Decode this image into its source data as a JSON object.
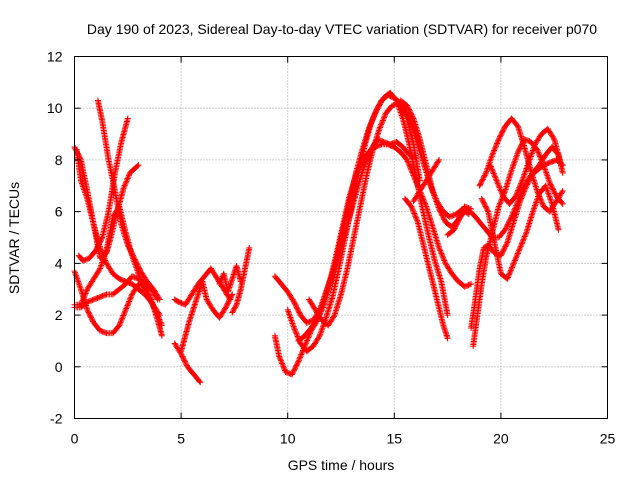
{
  "chart_data": {
    "type": "scatter",
    "title": "Day 190 of 2023, Sidereal Day-to-day VTEC variation (SDTVAR) for receiver p070",
    "xlabel": "GPS time / hours",
    "ylabel": "SDTVAR / TECUs",
    "xlim": [
      0,
      25
    ],
    "ylim": [
      -2,
      12
    ],
    "xticks": [
      0,
      5,
      10,
      15,
      20,
      25
    ],
    "yticks": [
      -2,
      0,
      2,
      4,
      6,
      8,
      10,
      12
    ],
    "xtick_labels": [
      "0",
      "5",
      "10",
      "15",
      "20",
      "25"
    ],
    "ytick_labels": [
      "-2",
      "0",
      "2",
      "4",
      "6",
      "8",
      "10",
      "12"
    ],
    "grid": true,
    "marker": "+",
    "marker_color": "#ff0000",
    "series": [
      {
        "name": "s1",
        "x": [
          0.0,
          0.3,
          0.6,
          0.9,
          1.2,
          1.5,
          1.8,
          2.1,
          2.4,
          2.7,
          3.0,
          3.3,
          3.6,
          3.9,
          4.1
        ],
        "y": [
          8.5,
          8.0,
          6.8,
          5.5,
          4.6,
          4.0,
          3.6,
          3.4,
          3.3,
          3.2,
          3.0,
          2.8,
          2.5,
          2.0,
          1.6
        ]
      },
      {
        "name": "s2",
        "x": [
          0.0,
          0.3,
          0.6,
          0.9,
          1.2,
          1.5,
          1.8,
          2.1,
          2.4,
          2.7,
          3.0,
          3.3,
          3.6,
          3.9
        ],
        "y": [
          2.3,
          2.3,
          2.5,
          2.6,
          2.7,
          2.8,
          2.8,
          3.0,
          3.2,
          3.5,
          3.4,
          3.2,
          3.0,
          2.6
        ]
      },
      {
        "name": "s3",
        "x": [
          0.0,
          0.3,
          0.6,
          0.9,
          1.2,
          1.5,
          1.8,
          2.1,
          2.4,
          2.7,
          3.0,
          3.3,
          3.6,
          3.9,
          4.1
        ],
        "y": [
          3.7,
          3.0,
          2.2,
          1.7,
          1.4,
          1.3,
          1.3,
          1.6,
          2.2,
          2.8,
          3.2,
          3.1,
          2.6,
          1.8,
          1.2
        ]
      },
      {
        "name": "s4",
        "x": [
          0.1,
          0.3,
          0.6,
          0.9,
          1.2,
          1.5,
          1.7,
          2.0,
          2.3,
          2.6,
          3.0
        ],
        "y": [
          8.4,
          7.2,
          6.5,
          5.5,
          4.2,
          4.4,
          5.0,
          6.0,
          6.9,
          7.5,
          7.8
        ]
      },
      {
        "name": "s5",
        "x": [
          0.2,
          0.4,
          0.7,
          1.0,
          1.3,
          1.6,
          1.9,
          2.2,
          2.5
        ],
        "y": [
          4.3,
          4.1,
          4.2,
          4.5,
          5.0,
          6.0,
          7.5,
          8.7,
          9.6
        ]
      },
      {
        "name": "s6",
        "x": [
          1.1,
          1.3,
          1.6,
          1.9,
          2.2,
          2.5,
          2.8,
          3.1,
          3.4,
          3.7,
          4.0
        ],
        "y": [
          10.3,
          9.5,
          8.0,
          6.8,
          5.5,
          4.7,
          4.2,
          3.7,
          3.3,
          3.0,
          2.6
        ]
      },
      {
        "name": "s7",
        "x": [
          0.0,
          0.3,
          0.6,
          0.9,
          1.2,
          1.5,
          1.8,
          2.1,
          2.4,
          2.7,
          3.0,
          3.3,
          3.6,
          4.0
        ],
        "y": [
          2.4,
          2.4,
          3.0,
          3.4,
          3.8,
          4.5,
          5.8,
          6.2,
          5.2,
          4.3,
          3.6,
          3.0,
          2.5,
          2.0
        ]
      },
      {
        "name": "s8",
        "x": [
          4.7,
          5.0,
          5.3,
          5.6,
          5.9
        ],
        "y": [
          0.9,
          0.5,
          0.0,
          -0.3,
          -0.6
        ]
      },
      {
        "name": "s9",
        "x": [
          4.7,
          4.9,
          5.2,
          5.5,
          5.8,
          6.1,
          6.4,
          6.7,
          7.0,
          7.3
        ],
        "y": [
          2.6,
          2.5,
          2.4,
          2.8,
          3.2,
          3.5,
          3.8,
          3.4,
          3.0,
          2.6
        ]
      },
      {
        "name": "s10",
        "x": [
          5.0,
          5.2,
          5.4,
          5.6,
          5.8,
          6.0,
          6.2,
          6.5,
          6.8,
          7.1,
          7.4
        ],
        "y": [
          0.6,
          1.2,
          1.8,
          2.3,
          2.8,
          3.3,
          2.6,
          2.2,
          1.9,
          2.3,
          2.8
        ]
      },
      {
        "name": "s11",
        "x": [
          7.4,
          7.6,
          7.8,
          8.0,
          8.2
        ],
        "y": [
          2.1,
          2.4,
          3.0,
          3.8,
          4.6
        ]
      },
      {
        "name": "s12",
        "x": [
          6.8,
          7.0,
          7.2,
          7.4,
          7.6,
          7.8
        ],
        "y": [
          3.2,
          3.6,
          2.9,
          3.4,
          3.9,
          3.3
        ]
      },
      {
        "name": "s13",
        "x": [
          9.4,
          9.6,
          9.9,
          10.2,
          10.5,
          10.8,
          11.1,
          11.4,
          11.7,
          12.0,
          12.3,
          12.6,
          12.9,
          13.2,
          13.5,
          13.8,
          14.1,
          14.4,
          14.7,
          15.0,
          15.3,
          15.6,
          15.9,
          16.2
        ],
        "y": [
          1.2,
          0.4,
          -0.2,
          -0.3,
          0.2,
          0.8,
          1.4,
          1.8,
          2.4,
          3.2,
          4.2,
          5.3,
          6.4,
          7.5,
          8.4,
          9.2,
          9.8,
          10.3,
          10.5,
          10.4,
          10.2,
          9.6,
          8.6,
          7.2
        ]
      },
      {
        "name": "s14",
        "x": [
          9.4,
          9.7,
          10.0,
          10.3,
          10.6,
          10.9,
          11.2,
          11.5,
          11.8,
          12.1,
          12.4,
          12.7,
          13.0,
          13.3,
          13.6,
          13.9,
          14.2,
          14.5,
          14.8,
          15.1,
          15.4,
          15.7,
          16.0
        ],
        "y": [
          3.5,
          3.2,
          2.9,
          2.5,
          2.0,
          1.7,
          1.8,
          2.2,
          2.9,
          3.6,
          4.4,
          5.2,
          6.1,
          7.0,
          7.8,
          8.4,
          8.8,
          8.7,
          8.6,
          8.7,
          8.5,
          8.2,
          8.1
        ]
      },
      {
        "name": "s15",
        "x": [
          10.0,
          10.3,
          10.6,
          10.9,
          11.2,
          11.5,
          11.8,
          12.1,
          12.4,
          12.7,
          13.0,
          13.3,
          13.6,
          13.9,
          14.2,
          14.5,
          14.8,
          15.1,
          15.4,
          15.7,
          16.0,
          16.3,
          16.6,
          16.9,
          17.2,
          17.5
        ],
        "y": [
          2.2,
          1.5,
          0.9,
          0.6,
          0.8,
          1.2,
          1.9,
          2.7,
          3.8,
          5.0,
          6.2,
          7.4,
          8.5,
          9.4,
          10.0,
          10.4,
          10.6,
          10.3,
          9.6,
          8.6,
          7.4,
          6.2,
          5.1,
          4.1,
          3.3,
          2.0
        ]
      },
      {
        "name": "s16",
        "x": [
          10.5,
          10.8,
          11.1,
          11.4,
          11.7,
          12.0,
          12.3,
          12.6,
          12.9,
          13.2,
          13.5,
          13.8,
          14.1,
          14.4,
          14.7,
          15.0,
          15.3,
          15.6,
          15.9,
          16.2,
          16.5,
          16.8,
          17.1,
          17.4,
          17.7,
          18.0,
          18.3,
          18.6
        ],
        "y": [
          1.0,
          1.2,
          1.5,
          1.9,
          2.6,
          3.4,
          4.4,
          5.5,
          6.6,
          7.4,
          8.0,
          8.3,
          8.5,
          8.6,
          8.6,
          8.5,
          8.3,
          8.0,
          7.4,
          6.8,
          6.2,
          5.4,
          4.6,
          4.0,
          3.6,
          3.3,
          3.1,
          3.2
        ]
      },
      {
        "name": "s17",
        "x": [
          11.0,
          11.3,
          11.6,
          11.9,
          12.2,
          12.5,
          12.8,
          13.1,
          13.4,
          13.7,
          14.0,
          14.3,
          14.6,
          14.9,
          15.2,
          15.5,
          15.8,
          16.1,
          16.4,
          16.7,
          17.0,
          17.3,
          17.6,
          17.9,
          18.2,
          18.5
        ],
        "y": [
          2.6,
          2.2,
          1.8,
          1.6,
          2.0,
          2.8,
          3.8,
          5.0,
          6.2,
          7.4,
          8.4,
          9.2,
          9.8,
          10.1,
          10.2,
          10.0,
          9.4,
          8.6,
          7.8,
          7.0,
          6.4,
          6.0,
          5.8,
          5.9,
          6.1,
          5.9
        ]
      },
      {
        "name": "s18",
        "x": [
          15.3,
          15.6,
          15.9,
          16.2,
          16.5,
          16.8,
          17.1,
          17.4,
          17.7,
          18.0,
          18.3,
          18.6
        ],
        "y": [
          10.3,
          10.1,
          9.6,
          8.8,
          7.8,
          6.8,
          6.1,
          5.6,
          5.4,
          5.7,
          6.2,
          6.1
        ]
      },
      {
        "name": "s19",
        "x": [
          15.9,
          16.2,
          16.5,
          16.8,
          17.1
        ],
        "y": [
          6.4,
          6.8,
          7.2,
          7.6,
          8.0
        ]
      },
      {
        "name": "s20",
        "x": [
          15.5,
          15.8,
          16.1,
          16.4,
          16.7,
          17.0,
          17.3,
          17.5
        ],
        "y": [
          6.5,
          6.2,
          5.6,
          4.6,
          3.6,
          2.6,
          1.6,
          1.1
        ]
      },
      {
        "name": "s21",
        "x": [
          17.5,
          17.8,
          18.1,
          18.4,
          18.7,
          19.0,
          19.3,
          19.6,
          19.9,
          20.2,
          20.5,
          20.8,
          21.1,
          21.4,
          21.7,
          22.0,
          22.3,
          22.6,
          22.9
        ],
        "y": [
          5.1,
          5.3,
          5.8,
          6.1,
          5.9,
          5.6,
          5.3,
          5.0,
          5.0,
          5.3,
          5.8,
          6.4,
          7.0,
          7.4,
          7.6,
          7.8,
          7.9,
          8.0,
          7.8
        ]
      },
      {
        "name": "s22",
        "x": [
          18.6,
          18.8,
          19.0,
          19.2,
          19.4,
          19.7,
          20.0,
          20.3,
          20.6,
          20.9,
          21.2,
          21.5,
          21.8,
          22.1,
          22.4,
          22.7,
          22.9
        ],
        "y": [
          1.5,
          2.6,
          3.8,
          4.6,
          4.7,
          4.4,
          4.3,
          4.8,
          5.6,
          6.4,
          7.0,
          7.5,
          7.8,
          8.2,
          8.5,
          8.2,
          7.5
        ]
      },
      {
        "name": "s23",
        "x": [
          18.7,
          18.9,
          19.1,
          19.3,
          19.6,
          19.9,
          20.2,
          20.5,
          20.8,
          21.1,
          21.4,
          21.7,
          22.0,
          22.3,
          22.6,
          22.9
        ],
        "y": [
          0.8,
          2.0,
          3.2,
          4.2,
          5.2,
          6.2,
          6.8,
          7.6,
          8.3,
          8.8,
          8.7,
          8.4,
          7.8,
          7.1,
          6.6,
          6.3
        ]
      },
      {
        "name": "s24",
        "x": [
          19.0,
          19.3,
          19.6,
          19.9,
          20.2,
          20.5,
          20.8,
          21.1,
          21.4,
          21.7,
          22.0,
          22.3,
          22.6,
          22.9
        ],
        "y": [
          7.0,
          7.5,
          8.2,
          8.8,
          9.3,
          9.6,
          9.3,
          8.5,
          7.6,
          6.8,
          6.2,
          6.0,
          6.4,
          6.8
        ]
      },
      {
        "name": "s25",
        "x": [
          19.1,
          19.4,
          19.7,
          20.0,
          20.3,
          20.6,
          20.9,
          21.2,
          21.5,
          21.8,
          22.1,
          22.4,
          22.7
        ],
        "y": [
          6.5,
          6.0,
          4.8,
          3.6,
          3.4,
          4.0,
          4.6,
          5.2,
          6.0,
          6.7,
          7.0,
          6.3,
          5.3
        ]
      },
      {
        "name": "s26",
        "x": [
          19.5,
          19.8,
          20.1,
          20.4,
          20.7,
          21.0,
          21.3,
          21.6,
          21.9,
          22.2,
          22.5,
          22.8
        ],
        "y": [
          7.8,
          7.2,
          6.6,
          6.3,
          6.6,
          7.2,
          7.9,
          8.6,
          9.0,
          9.2,
          8.8,
          7.9
        ]
      }
    ]
  }
}
